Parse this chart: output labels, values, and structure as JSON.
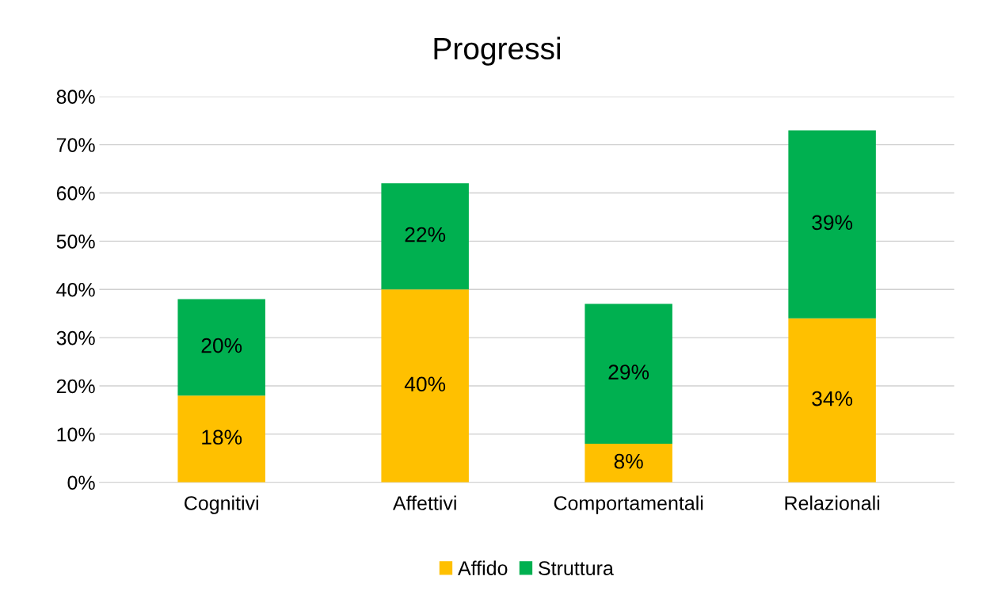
{
  "chart_data": {
    "type": "bar",
    "title": "Progressi",
    "categories": [
      "Cognitivi",
      "Affettivi",
      "Comportamentali",
      "Relazionali"
    ],
    "series": [
      {
        "name": "Affido",
        "color": "#ffc000",
        "values": [
          18,
          40,
          8,
          34
        ],
        "value_labels": [
          "18%",
          "40%",
          "8%",
          "34%"
        ]
      },
      {
        "name": "Struttura",
        "color": "#00b050",
        "values": [
          20,
          22,
          29,
          39
        ],
        "value_labels": [
          "20%",
          "22%",
          "29%",
          "39%"
        ]
      }
    ],
    "stacked": true,
    "ylim": [
      0,
      80
    ],
    "yticks": [
      {
        "value": 0,
        "label": "0%"
      },
      {
        "value": 10,
        "label": "10%"
      },
      {
        "value": 20,
        "label": "20%"
      },
      {
        "value": 30,
        "label": "30%"
      },
      {
        "value": 40,
        "label": "40%"
      },
      {
        "value": 50,
        "label": "50%"
      },
      {
        "value": 60,
        "label": "60%"
      },
      {
        "value": 70,
        "label": "70%"
      },
      {
        "value": 80,
        "label": "80%"
      }
    ],
    "grid": "y",
    "legend": "bottom"
  }
}
